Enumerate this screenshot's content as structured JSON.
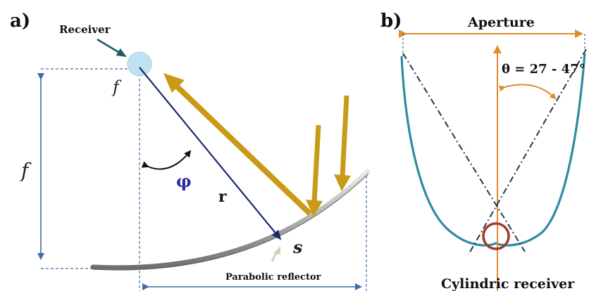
{
  "panel_a": {
    "label": "a)",
    "receiver_label": "Receiver",
    "focus_point_label": "f",
    "focal_length_label": "f",
    "angle_label": "φ",
    "radius_label": "r",
    "surface_point_label": "s",
    "reflector_label": "Parabolic reflector"
  },
  "panel_b": {
    "label": "b)",
    "aperture_label": "Aperture",
    "angle_label": "θ = 27 - 47°",
    "receiver_label": "Cylindric receiver"
  },
  "colors": {
    "receiver_fill": "#bfe3f2",
    "ray_dark_blue": "#1a2a6b",
    "sun_ray_gold": "#c89a18",
    "reflector_gray": "#9a9a9a",
    "guide_blue": "#3b6fa8",
    "aperture_orange": "#e08a2e",
    "trough_teal": "#2f8aa0",
    "receiver_ring": "#a33a2a",
    "angle_label_blue": "#2a2aa0"
  }
}
